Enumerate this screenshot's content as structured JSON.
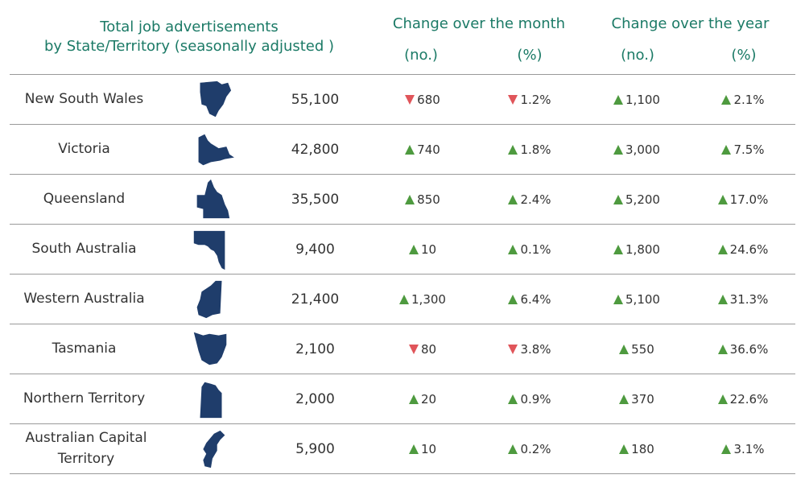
{
  "header": {
    "title_line1": "Total job advertisements",
    "title_line2": "by State/Territory (seasonally adjusted )",
    "month_title": "Change over the month",
    "year_title": "Change over the year",
    "no_label": "(no.)",
    "pct_label": "(%)"
  },
  "colors": {
    "up": "#4e9a3f",
    "down": "#e0555a",
    "map": "#1f3d6b",
    "header": "#1b7a66"
  },
  "rows": [
    {
      "state": "New South Wales",
      "map_icon": "nsw-map-icon",
      "total": "55,100",
      "month_no": "680",
      "month_no_dir": "down",
      "month_pct": "1.2%",
      "month_pct_dir": "down",
      "year_no": "1,100",
      "year_no_dir": "up",
      "year_pct": "2.1%",
      "year_pct_dir": "up"
    },
    {
      "state": "Victoria",
      "map_icon": "vic-map-icon",
      "total": "42,800",
      "month_no": "740",
      "month_no_dir": "up",
      "month_pct": "1.8%",
      "month_pct_dir": "up",
      "year_no": "3,000",
      "year_no_dir": "up",
      "year_pct": "7.5%",
      "year_pct_dir": "up"
    },
    {
      "state": "Queensland",
      "map_icon": "qld-map-icon",
      "total": "35,500",
      "month_no": "850",
      "month_no_dir": "up",
      "month_pct": "2.4%",
      "month_pct_dir": "up",
      "year_no": "5,200",
      "year_no_dir": "up",
      "year_pct": "17.0%",
      "year_pct_dir": "up"
    },
    {
      "state": "South Australia",
      "map_icon": "sa-map-icon",
      "total": "9,400",
      "month_no": "10",
      "month_no_dir": "up",
      "month_pct": "0.1%",
      "month_pct_dir": "up",
      "year_no": "1,800",
      "year_no_dir": "up",
      "year_pct": "24.6%",
      "year_pct_dir": "up"
    },
    {
      "state": "Western Australia",
      "map_icon": "wa-map-icon",
      "total": "21,400",
      "month_no": "1,300",
      "month_no_dir": "up",
      "month_pct": "6.4%",
      "month_pct_dir": "up",
      "year_no": "5,100",
      "year_no_dir": "up",
      "year_pct": "31.3%",
      "year_pct_dir": "up"
    },
    {
      "state": "Tasmania",
      "map_icon": "tas-map-icon",
      "total": "2,100",
      "month_no": "80",
      "month_no_dir": "down",
      "month_pct": "3.8%",
      "month_pct_dir": "down",
      "year_no": "550",
      "year_no_dir": "up",
      "year_pct": "36.6%",
      "year_pct_dir": "up"
    },
    {
      "state": "Northern Territory",
      "map_icon": "nt-map-icon",
      "total": "2,000",
      "month_no": "20",
      "month_no_dir": "up",
      "month_pct": "0.9%",
      "month_pct_dir": "up",
      "year_no": "370",
      "year_no_dir": "up",
      "year_pct": "22.6%",
      "year_pct_dir": "up"
    },
    {
      "state": "Australian Capital Territory",
      "map_icon": "act-map-icon",
      "total": "5,900",
      "month_no": "10",
      "month_no_dir": "up",
      "month_pct": "0.2%",
      "month_pct_dir": "up",
      "year_no": "180",
      "year_no_dir": "up",
      "year_pct": "3.1%",
      "year_pct_dir": "up"
    }
  ]
}
